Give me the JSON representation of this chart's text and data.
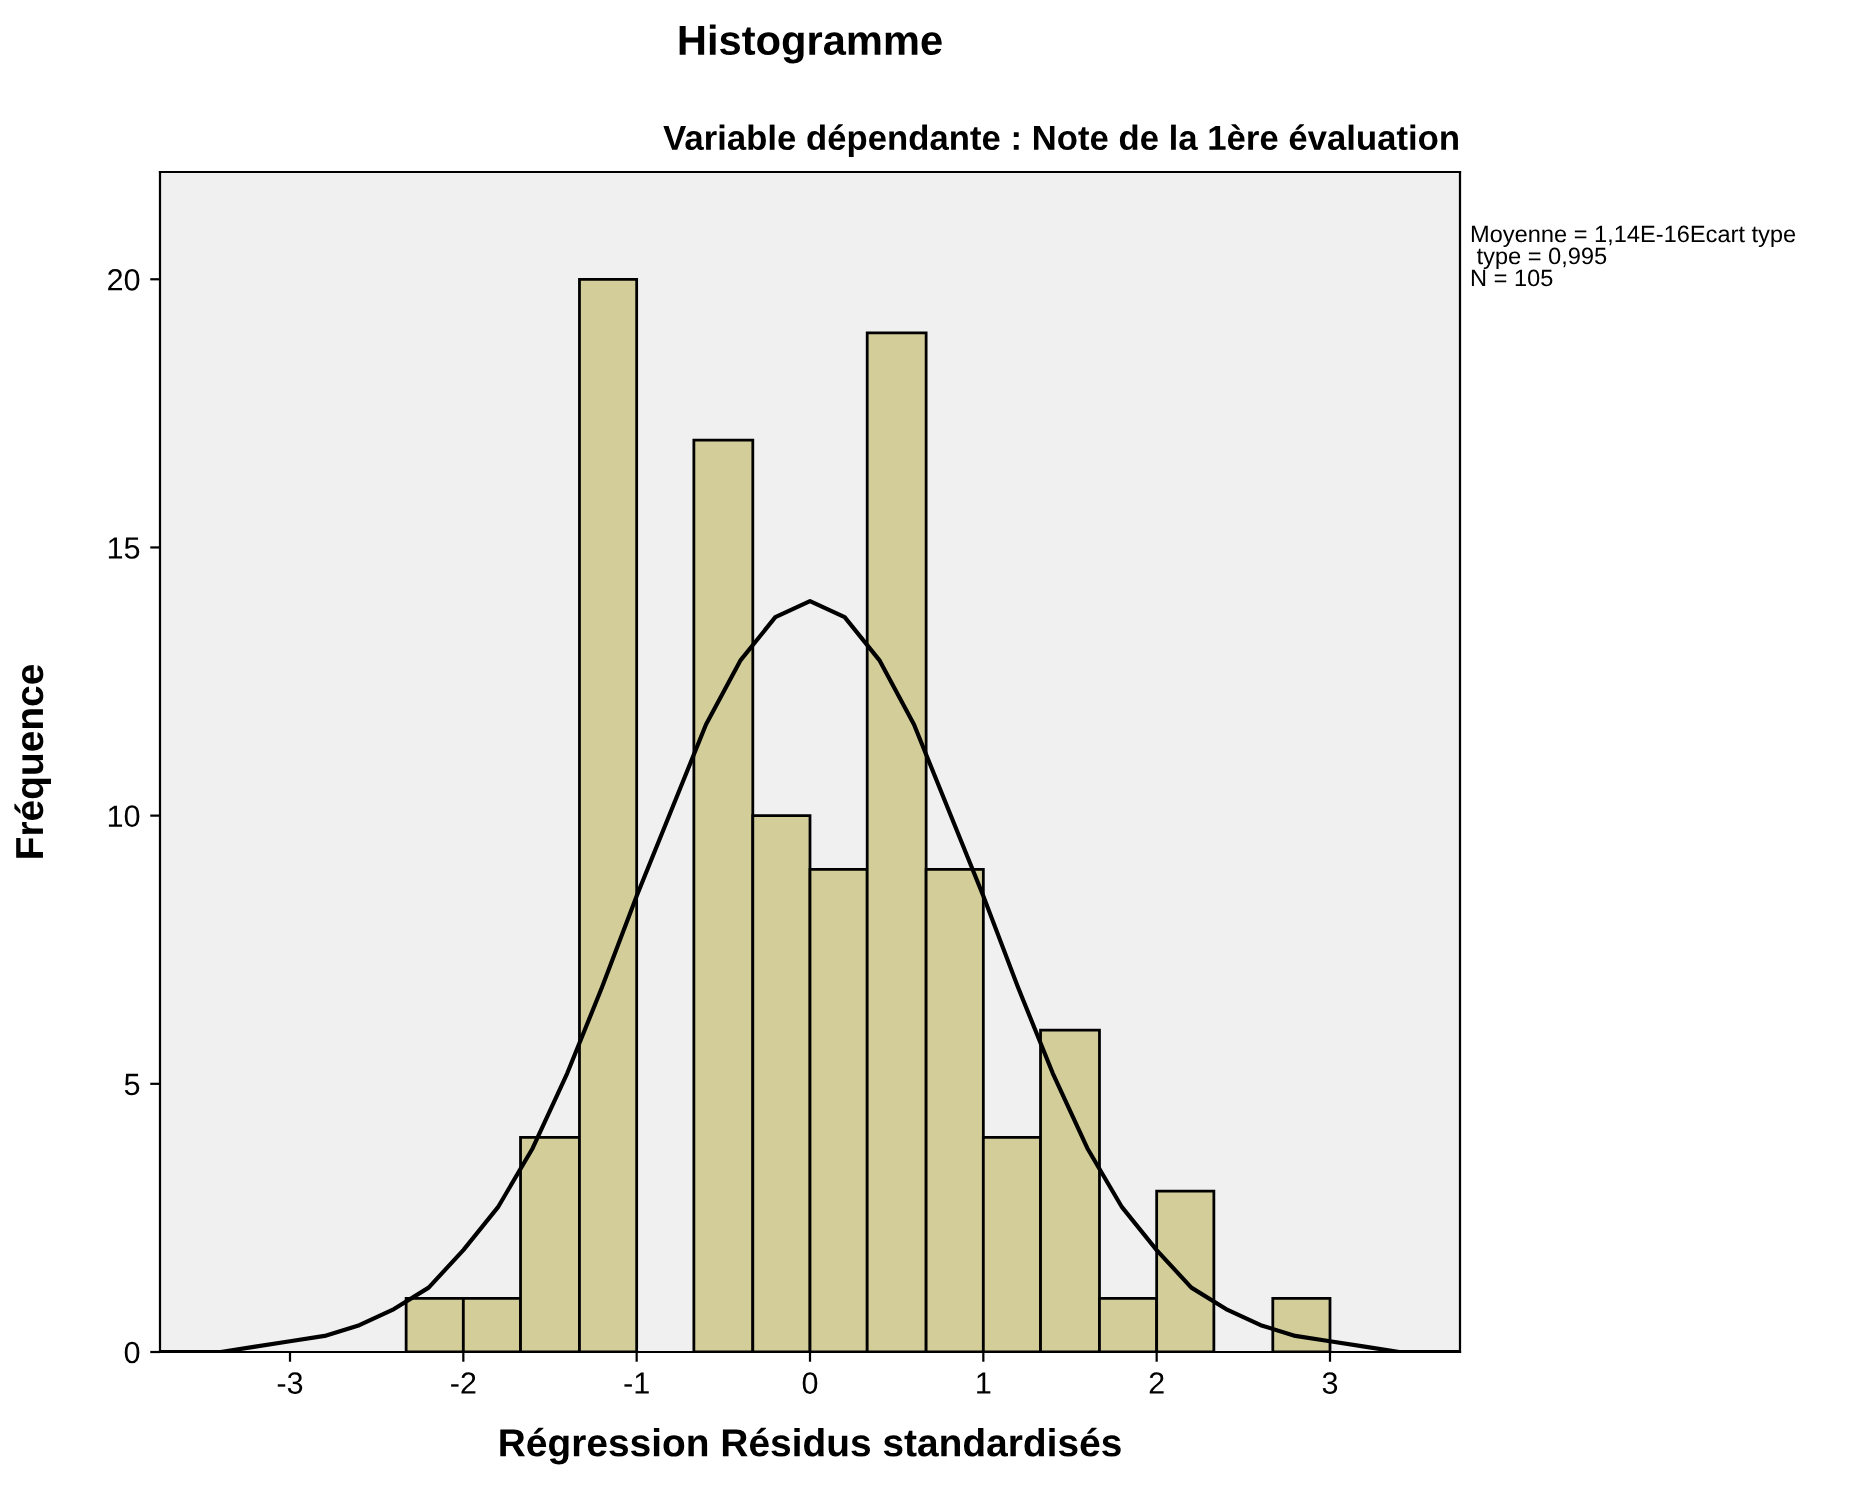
{
  "chart_data": {
    "type": "histogram",
    "title": "Histogramme",
    "subtitle": "Variable dépendante : Note de la 1ère évaluation",
    "xlabel": "Régression Résidus standardisés",
    "ylabel": "Fréquence",
    "bins": [
      -2.33,
      -2.0,
      -1.67,
      -1.33,
      -1.0,
      -0.67,
      -0.33,
      0.0,
      0.33,
      0.67,
      1.0,
      1.33,
      1.67,
      2.0,
      2.33,
      2.67,
      3.0
    ],
    "values": [
      1,
      1,
      4,
      20,
      0,
      17,
      10,
      9,
      19,
      9,
      4,
      6,
      1,
      3,
      0,
      1
    ],
    "color": "#d3ce99",
    "series": [
      {
        "type": "line",
        "color": "#000000",
        "x": [
          -3.75,
          -3.6,
          -3.4,
          -3.2,
          -3.0,
          -2.8,
          -2.6,
          -2.4,
          -2.2,
          -2.0,
          -1.8,
          -1.6,
          -1.4,
          -1.2,
          -1.0,
          -0.8,
          -0.6,
          -0.4,
          -0.2,
          0.0,
          0.2,
          0.4,
          0.6,
          0.8,
          1.0,
          1.2,
          1.4,
          1.6,
          1.8,
          2.0,
          2.2,
          2.4,
          2.6,
          2.8,
          3.0,
          3.2,
          3.4,
          3.6,
          3.75
        ],
        "values": [
          0.0,
          0.0,
          0.0,
          0.1,
          0.2,
          0.3,
          0.5,
          0.8,
          1.2,
          1.9,
          2.7,
          3.8,
          5.2,
          6.8,
          8.5,
          10.1,
          11.7,
          12.9,
          13.7,
          14.0,
          13.7,
          12.9,
          11.7,
          10.1,
          8.5,
          6.8,
          5.2,
          3.8,
          2.7,
          1.9,
          1.2,
          0.8,
          0.5,
          0.3,
          0.2,
          0.1,
          0.0,
          0.0,
          0.0
        ]
      }
    ],
    "xlim": [
      -3.75,
      3.75
    ],
    "ylim": [
      0,
      22
    ],
    "xticks": [
      -3,
      -2,
      -1,
      0,
      1,
      2,
      3
    ],
    "yticks": [
      0,
      5,
      10,
      15,
      20
    ],
    "grid": false,
    "annotations": [
      "Moyenne = 1,14E-16Ecart type",
      " type = 0,995",
      "N = 105"
    ]
  }
}
